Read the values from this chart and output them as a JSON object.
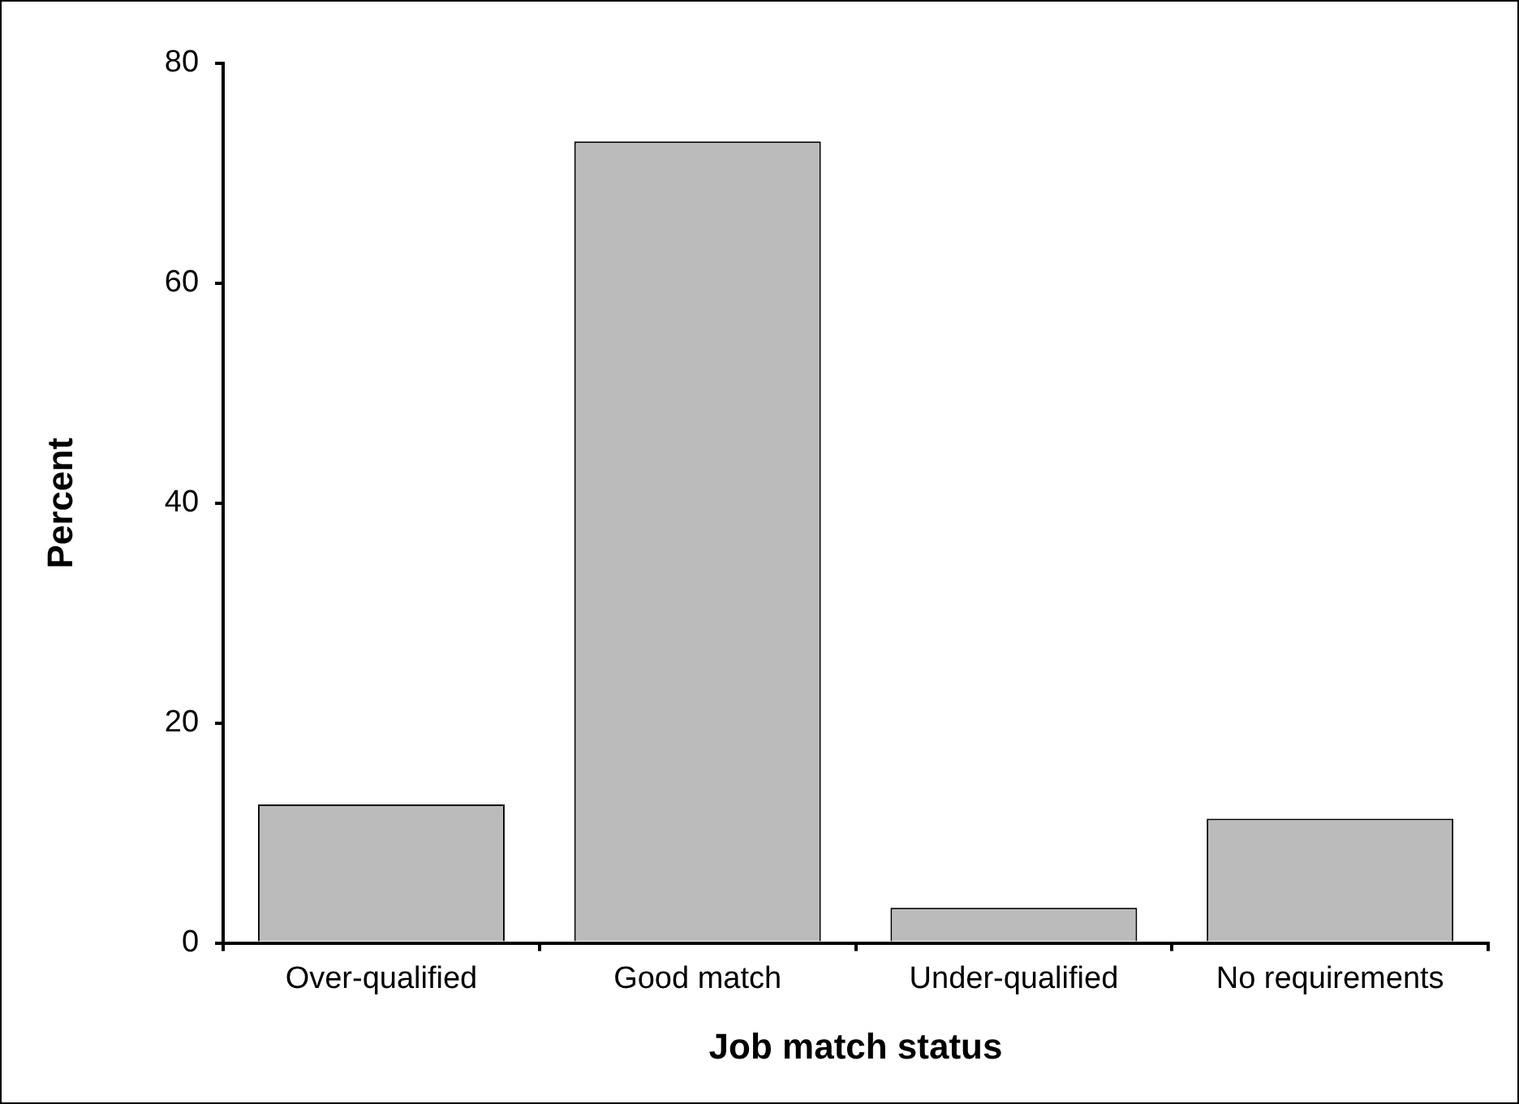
{
  "chart_data": {
    "type": "bar",
    "xlabel": "Job match status",
    "ylabel": "Percent",
    "categories": [
      "Over-qualified",
      "Good match",
      "Under-qualified",
      "No requirements"
    ],
    "values": [
      12.6,
      72.9,
      3.2,
      11.3
    ],
    "color": "#bbbbbb",
    "ylim": [
      0,
      80
    ],
    "yticks": [
      0,
      20,
      40,
      60,
      80
    ],
    "grid": false,
    "legend": false
  }
}
